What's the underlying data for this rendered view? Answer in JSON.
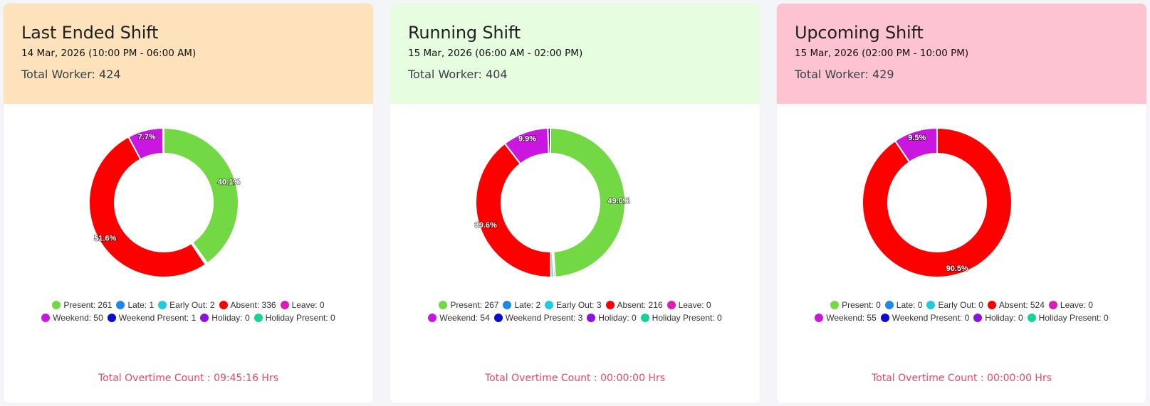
{
  "colors": {
    "present": "#72d944",
    "late": "#1e88e5",
    "early_out": "#21cadc",
    "absent": "#fc0100",
    "leave": "#dc1cb4",
    "weekend": "#cb16e0",
    "weekend_present": "#0b0bd9",
    "holiday": "#8d12e3",
    "holiday_present": "#16d29a"
  },
  "cards": [
    {
      "title": "Last Ended Shift",
      "date": "14 Mar, 2026 (10:00 PM - 06:00 AM)",
      "total": "Total Worker: 424",
      "header_color": "#fde2bb",
      "overtime": "Total Overtime Count : 09:45:16 Hrs"
    },
    {
      "title": "Running Shift",
      "date": "15 Mar, 2026 (06:00 AM - 02:00 PM)",
      "total": "Total Worker: 404",
      "header_color": "#e6fde0",
      "overtime": "Total Overtime Count : 00:00:00 Hrs"
    },
    {
      "title": "Upcoming Shift",
      "date": "15 Mar, 2026 (02:00 PM - 10:00 PM)",
      "total": "Total Worker: 429",
      "header_color": "#fec3d0",
      "overtime": "Total Overtime Count : 00:00:00 Hrs"
    }
  ],
  "chart_data": [
    {
      "type": "pie",
      "series": [
        {
          "key": "present",
          "label": "Present: 261",
          "value": 261
        },
        {
          "key": "late",
          "label": "Late: 1",
          "value": 1
        },
        {
          "key": "early_out",
          "label": "Early Out: 2",
          "value": 2
        },
        {
          "key": "absent",
          "label": "Absent: 336",
          "value": 336
        },
        {
          "key": "leave",
          "label": "Leave: 0",
          "value": 0
        },
        {
          "key": "weekend",
          "label": "Weekend: 50",
          "value": 50
        },
        {
          "key": "weekend_present",
          "label": "Weekend Present: 1",
          "value": 1
        },
        {
          "key": "holiday",
          "label": "Holiday: 0",
          "value": 0
        },
        {
          "key": "holiday_present",
          "label": "Holiday Present: 0",
          "value": 0
        }
      ],
      "slice_labels": {
        "present": "40.1%",
        "absent": "51.6%",
        "weekend": "7.7%"
      },
      "legend_position": "bottom"
    },
    {
      "type": "pie",
      "series": [
        {
          "key": "present",
          "label": "Present: 267",
          "value": 267
        },
        {
          "key": "late",
          "label": "Late: 2",
          "value": 2
        },
        {
          "key": "early_out",
          "label": "Early Out: 3",
          "value": 3
        },
        {
          "key": "absent",
          "label": "Absent: 216",
          "value": 216
        },
        {
          "key": "leave",
          "label": "Leave: 0",
          "value": 0
        },
        {
          "key": "weekend",
          "label": "Weekend: 54",
          "value": 54
        },
        {
          "key": "weekend_present",
          "label": "Weekend Present: 3",
          "value": 3
        },
        {
          "key": "holiday",
          "label": "Holiday: 0",
          "value": 0
        },
        {
          "key": "holiday_present",
          "label": "Holiday Present: 0",
          "value": 0
        }
      ],
      "slice_labels": {
        "present": "49.0%",
        "absent": "39.6%",
        "weekend": "9.9%"
      },
      "legend_position": "bottom"
    },
    {
      "type": "pie",
      "series": [
        {
          "key": "present",
          "label": "Present: 0",
          "value": 0
        },
        {
          "key": "late",
          "label": "Late: 0",
          "value": 0
        },
        {
          "key": "early_out",
          "label": "Early Out: 0",
          "value": 0
        },
        {
          "key": "absent",
          "label": "Absent: 524",
          "value": 524
        },
        {
          "key": "leave",
          "label": "Leave: 0",
          "value": 0
        },
        {
          "key": "weekend",
          "label": "Weekend: 55",
          "value": 55
        },
        {
          "key": "weekend_present",
          "label": "Weekend Present: 0",
          "value": 0
        },
        {
          "key": "holiday",
          "label": "Holiday: 0",
          "value": 0
        },
        {
          "key": "holiday_present",
          "label": "Holiday Present: 0",
          "value": 0
        }
      ],
      "slice_labels": {
        "absent": "90.5%",
        "weekend": "9.5%"
      },
      "legend_position": "bottom"
    }
  ]
}
